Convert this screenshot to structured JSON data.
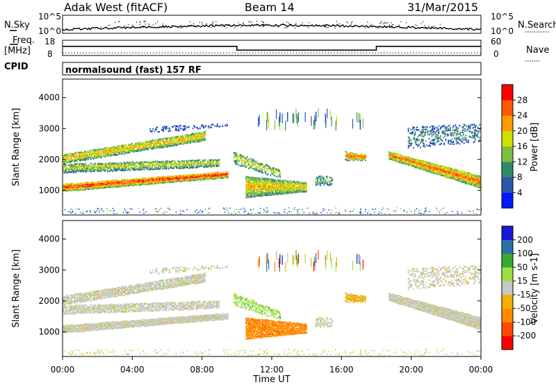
{
  "header": {
    "radar": "Adak West (fitACF)",
    "beam": "Beam 14",
    "date": "31/Mar/2015"
  },
  "colors": {
    "power_scale": [
      "#0019ff",
      "#2a57a8",
      "#2e8a6b",
      "#7fbf3f",
      "#cde000",
      "#ff9a00",
      "#ff5a00",
      "#ff0000"
    ],
    "velocity_scale": [
      "#ff0000",
      "#ff4a00",
      "#ff8a00",
      "#f0b000",
      "#c8c8c0",
      "#9ae040",
      "#39a835",
      "#2a70a8",
      "#1818d8"
    ]
  },
  "chart_data": [
    {
      "type": "line",
      "panel": "noise",
      "left_label_top": "N.Sky",
      "left_ticks": [
        "10^5",
        "10^0"
      ],
      "right_ticks": [
        "10^5",
        "10^0"
      ],
      "right_label": "N.Search",
      "right_label_style": "dotted",
      "note": "Sky noise series (solid) and search noise (dotted) over the day"
    },
    {
      "type": "line",
      "panel": "frequency",
      "left_label": [
        "Freq.",
        "[MHz]"
      ],
      "left_ticks": [
        18,
        8
      ],
      "right_ticks": [
        60,
        0
      ],
      "right_label": "Nave",
      "right_label_style": "dotted",
      "cpid_label": "CPID",
      "program": "normalsound (fast) 157 RF",
      "freq_series": {
        "x": [
          "00:00",
          "10:00",
          "10:00",
          "18:00",
          "18:00",
          "24:00"
        ],
        "y": [
          14,
          14,
          11.5,
          11.5,
          14,
          14
        ]
      },
      "nave_series": {
        "x": [
          "00:00",
          "24:00"
        ],
        "y": [
          10,
          10
        ]
      }
    },
    {
      "type": "heatmap",
      "panel": "power",
      "ylabel": "Slant Range [km]",
      "ylim": [
        200,
        4600
      ],
      "yticks": [
        1000,
        2000,
        3000,
        4000
      ],
      "colorbar_label": "Power [dB]",
      "colorbar_ticks": [
        4,
        8,
        12,
        16,
        20,
        24,
        28
      ]
    },
    {
      "type": "heatmap",
      "panel": "velocity",
      "ylabel": "Slant Range [km]",
      "ylim": [
        200,
        4600
      ],
      "yticks": [
        1000,
        2000,
        3000,
        4000
      ],
      "colorbar_label": "Velocity [m s-1]",
      "colorbar_ticks": [
        -200,
        -100,
        -50,
        -15,
        15,
        50,
        100,
        200
      ]
    }
  ],
  "xaxis": {
    "label": "Time UT",
    "ticks": [
      "00:00",
      "04:00",
      "08:00",
      "12:00",
      "16:00",
      "20:00",
      "00:00"
    ]
  }
}
